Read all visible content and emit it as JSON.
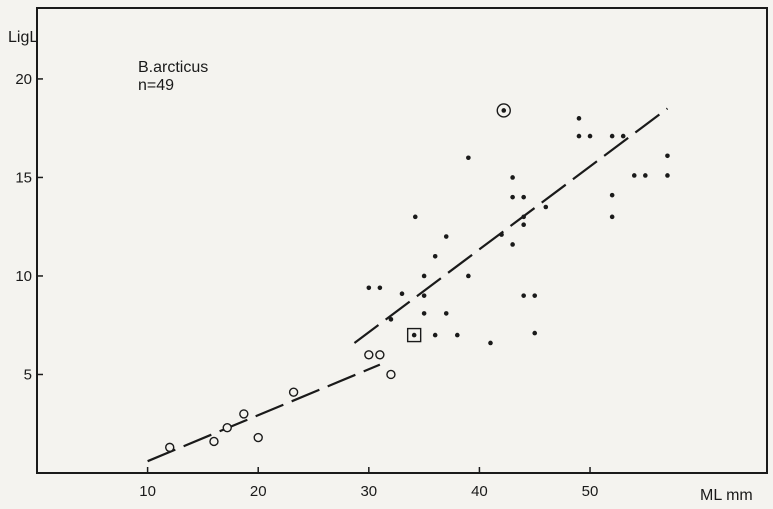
{
  "chart_data": {
    "type": "scatter",
    "title": "",
    "xlabel": "ML mm",
    "ylabel": "LigL",
    "xlim": [
      0,
      66
    ],
    "ylim": [
      0,
      23.6
    ],
    "x_ticks": [
      10,
      20,
      30,
      40,
      50
    ],
    "y_ticks": [
      5,
      10,
      15,
      20
    ],
    "grid": false,
    "annotation": [
      "B.arcticus",
      "n=49"
    ],
    "series": [
      {
        "marker": "open-circle",
        "points": [
          [
            12,
            1.3
          ],
          [
            16,
            1.6
          ],
          [
            17.2,
            2.3
          ],
          [
            18.7,
            3.0
          ],
          [
            20,
            1.8
          ],
          [
            23.2,
            4.1
          ],
          [
            30,
            6.0
          ],
          [
            31,
            6.0
          ],
          [
            32,
            5.0
          ]
        ]
      },
      {
        "marker": "dot",
        "points": [
          [
            30,
            9.4
          ],
          [
            31,
            9.4
          ],
          [
            32,
            7.8
          ],
          [
            33,
            9.1
          ],
          [
            34.2,
            13.0
          ],
          [
            35,
            10.0
          ],
          [
            35,
            9.0
          ],
          [
            35,
            8.1
          ],
          [
            36,
            11.0
          ],
          [
            36,
            7.0
          ],
          [
            37,
            12.0
          ],
          [
            37,
            8.1
          ],
          [
            38,
            7.0
          ],
          [
            39,
            16.0
          ],
          [
            39,
            10.0
          ],
          [
            41,
            6.6
          ],
          [
            42,
            12.1
          ],
          [
            43,
            15.0
          ],
          [
            43,
            14.0
          ],
          [
            43,
            11.6
          ],
          [
            44,
            14.0
          ],
          [
            44,
            13.0
          ],
          [
            44,
            12.6
          ],
          [
            44,
            9.0
          ],
          [
            45,
            9.0
          ],
          [
            45,
            7.1
          ],
          [
            46,
            13.5
          ],
          [
            49,
            18.0
          ],
          [
            49,
            17.1
          ],
          [
            50,
            17.1
          ],
          [
            52,
            17.1
          ],
          [
            52,
            14.1
          ],
          [
            52,
            13.0
          ],
          [
            53,
            17.1
          ],
          [
            54,
            15.1
          ],
          [
            55,
            15.1
          ],
          [
            57,
            16.1
          ],
          [
            57,
            15.1
          ]
        ]
      },
      {
        "marker": "circled-dot",
        "points": [
          [
            42.2,
            18.4
          ]
        ]
      },
      {
        "marker": "boxed-dot",
        "points": [
          [
            34.1,
            7.0
          ]
        ]
      }
    ],
    "fit_lines": [
      {
        "style": "dashed",
        "from": [
          10,
          0.6
        ],
        "to": [
          31,
          5.5
        ]
      },
      {
        "style": "dashed",
        "from": [
          28.7,
          6.6
        ],
        "to": [
          57,
          18.5
        ]
      }
    ]
  }
}
